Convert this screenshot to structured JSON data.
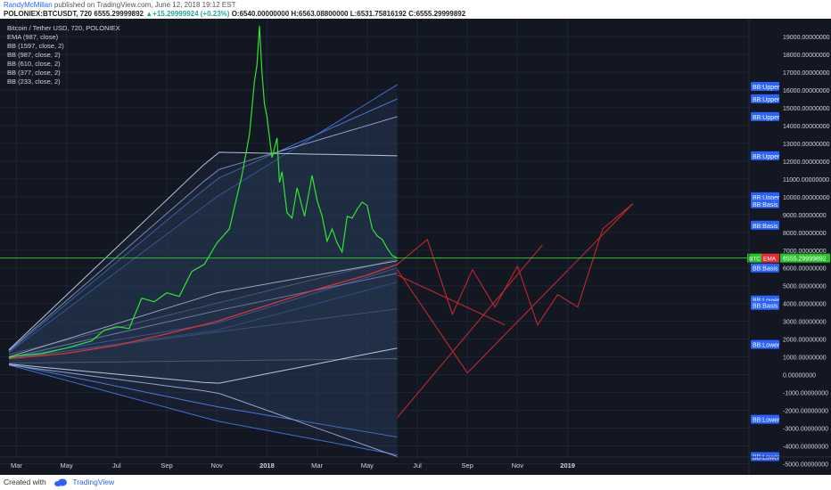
{
  "header": {
    "author": "RandyMcMillan",
    "published_text": " published on TradingView.com, June 12, 2018 19:12 EST",
    "symbol": "POLONIEX:BTCUSDT, 720",
    "last": "6555.29999892",
    "change_arrow": "▲",
    "change": "+15.29999924 (+0.23%)",
    "open": "O:6540.00000000",
    "high": "H:6563.08800000",
    "low": "L:6531.75816192",
    "close": "C:6555.29999892"
  },
  "legend": [
    "Bitcoin / Tether USD, 720, POLONIEX",
    "EMA (987, close)",
    "BB (1597, close, 2)",
    "BB (987, close, 2)",
    "BB (610, close, 2)",
    "BB (377, close, 2)",
    "BB (233, close, 2)"
  ],
  "footer": {
    "created_with": "Created with",
    "brand": "TradingView"
  },
  "colors": {
    "background": "#131722",
    "price": "#2ee62e",
    "ema": "#e03030",
    "projection": "#c0282c",
    "bb_fill": "#2b3a55",
    "label_bg": "#2962ff",
    "price_line": "#27c427"
  },
  "chart_data": {
    "type": "line",
    "title": "Bitcoin / Tether USD, 720, POLONIEX",
    "ylim": [
      -5000,
      20000
    ],
    "y_ticks": [
      19000,
      18000,
      17000,
      16000,
      15000,
      14000,
      13000,
      12000,
      11000,
      10000,
      9000,
      8000,
      7000,
      6000,
      5000,
      4000,
      3000,
      2000,
      1000,
      0,
      -1000,
      -2000,
      -3000,
      -4000,
      -5000
    ],
    "y_tick_labels": [
      "19000.00000000",
      "18000.00000000",
      "17000.00000000",
      "16000.00000000",
      "15000.00000000",
      "14000.00000000",
      "13000.00000000",
      "12000.00000000",
      "11000.00000000",
      "10000.00000000",
      "9000.00000000",
      "8000.00000000",
      "7000.00000000",
      "6000.00000000",
      "5000.00000000",
      "4000.00000000",
      "3000.00000000",
      "2000.00000000",
      "1000.00000000",
      "0.00000000",
      "-1000.00000000",
      "-2000.00000000",
      "-3000.00000000",
      "-4000.00000000",
      "-5000.00000000"
    ],
    "x_tick_labels": [
      "Mar",
      "May",
      "Jul",
      "Sep",
      "Nov",
      "2018",
      "Mar",
      "May",
      "Jul",
      "Sep",
      "Nov",
      "2019"
    ],
    "x_tick_index": [
      0,
      2,
      4,
      6,
      8,
      10,
      12,
      14,
      16,
      18,
      20,
      22
    ],
    "x_bold": [
      "2018",
      "2019"
    ],
    "x_range_months": [
      -0.3,
      30
    ],
    "series": [
      {
        "name": "Bitcoin / Tether USD",
        "style": "price",
        "x": [
          -0.3,
          0,
          1,
          2,
          3,
          3.5,
          4,
          4.5,
          5,
          5.5,
          6,
          6.5,
          7,
          7.5,
          8,
          8.5,
          9,
          9.3,
          9.5,
          9.6,
          9.7,
          9.8,
          9.9,
          10,
          10.2,
          10.4,
          10.5,
          10.6,
          10.8,
          11,
          11.2,
          11.5,
          11.8,
          12,
          12.2,
          12.4,
          12.6,
          12.8,
          13,
          13.2,
          13.4,
          13.6,
          13.8,
          14,
          14.2,
          14.4,
          14.6,
          14.8,
          15,
          15.2
        ],
        "y": [
          950,
          1050,
          1180,
          1500,
          1900,
          2500,
          2700,
          2600,
          4300,
          4100,
          4600,
          4400,
          5800,
          6200,
          7400,
          8200,
          11200,
          13500,
          16500,
          17400,
          19600,
          17000,
          15200,
          14500,
          12200,
          13300,
          10800,
          11400,
          9100,
          8800,
          10500,
          8900,
          11200,
          9800,
          8900,
          7500,
          8200,
          7400,
          6900,
          8900,
          8800,
          9300,
          9700,
          9500,
          8200,
          7800,
          7600,
          7100,
          6700,
          6555
        ]
      },
      {
        "name": "EMA (987, close)",
        "style": "ema",
        "x": [
          -0.3,
          2,
          4,
          6,
          8,
          10,
          12,
          14,
          15.2
        ],
        "y": [
          900,
          1200,
          1650,
          2300,
          3000,
          3900,
          4800,
          5600,
          6200
        ]
      }
    ],
    "bollinger_bands": [
      {
        "name": "BB (1597, close, 2)",
        "x": [
          -0.3,
          15.2
        ],
        "upper": [
          1150,
          6500
        ],
        "basis": [
          900,
          3700
        ],
        "lower": [
          650,
          900
        ]
      },
      {
        "name": "BB (987, close, 2)",
        "x": [
          -0.3,
          8,
          15.2
        ],
        "upper": [
          1250,
          10000,
          16300
        ],
        "basis": [
          900,
          2500,
          5200
        ],
        "lower": [
          550,
          -2600,
          -4500
        ]
      },
      {
        "name": "BB (610, close, 2)",
        "x": [
          -0.3,
          8,
          15.2
        ],
        "upper": [
          1300,
          11000,
          15500
        ],
        "basis": [
          950,
          2900,
          6000
        ],
        "lower": [
          600,
          -1800,
          -3500
        ]
      },
      {
        "name": "BB (377, close, 2)",
        "x": [
          -0.3,
          8,
          15.2
        ],
        "upper": [
          1350,
          11500,
          14500
        ],
        "basis": [
          950,
          3600,
          5700
        ],
        "lower": [
          550,
          -1000,
          -4600
        ]
      },
      {
        "name": "BB (233, close, 2)",
        "x": [
          -0.3,
          8,
          15.2
        ],
        "upper": [
          1400,
          12500,
          12300
        ],
        "basis": [
          1000,
          4600,
          6400
        ],
        "lower": [
          600,
          -500,
          1500
        ]
      }
    ],
    "projection_lines": [
      {
        "x": [
          15.2,
          16.4,
          17.4,
          18.2,
          19.1,
          20.0,
          20.8,
          21.6,
          22.4,
          23.4,
          24.6
        ],
        "y": [
          6200,
          7600,
          3400,
          5900,
          3800,
          6100,
          2800,
          4500,
          3800,
          8200,
          9600
        ]
      },
      {
        "x": [
          15.2,
          18.0,
          24.6
        ],
        "y": [
          5900,
          100,
          9600
        ]
      },
      {
        "x": [
          15.2,
          21.0
        ],
        "y": [
          -2400,
          7300
        ]
      },
      {
        "x": [
          15.2,
          19.5
        ],
        "y": [
          5600,
          2800
        ]
      }
    ],
    "right_labels": [
      {
        "text": "BB:Upper",
        "y": 16200
      },
      {
        "text": "BB:Upper",
        "y": 15500
      },
      {
        "text": "BB:Upper",
        "y": 14500
      },
      {
        "text": "BB:Upper",
        "y": 12300
      },
      {
        "text": "BB:Upper",
        "y": 10000
      },
      {
        "text": "BB:Basis",
        "y": 9600
      },
      {
        "text": "BB:Basis",
        "y": 8400
      },
      {
        "text": "BB:Basis",
        "y": 6000
      },
      {
        "text": "BB:Lower",
        "y": 4200
      },
      {
        "text": "BB:Basis",
        "y": 3900
      },
      {
        "text": "BB:Lower",
        "y": 1700
      },
      {
        "text": "BB:Lower",
        "y": -2500
      },
      {
        "text": "BB:Lower",
        "y": -4600
      }
    ],
    "last_price_label": "6555.29999892",
    "last_price": 6555.3,
    "price_badges": [
      "BTC",
      "EMA"
    ]
  }
}
